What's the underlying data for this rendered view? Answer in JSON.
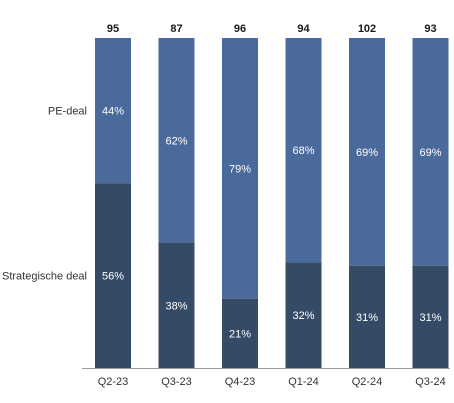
{
  "chart_data": {
    "type": "bar",
    "stacked": true,
    "normalized": true,
    "categories": [
      "Q2-23",
      "Q3-23",
      "Q4-23",
      "Q1-24",
      "Q2-24",
      "Q3-24"
    ],
    "totals": [
      95,
      87,
      96,
      94,
      102,
      93
    ],
    "series": [
      {
        "name": "Strategische deal",
        "values": [
          56,
          38,
          21,
          32,
          31,
          31
        ],
        "color": "#354a67"
      },
      {
        "name": "PE-deal",
        "values": [
          44,
          62,
          79,
          68,
          69,
          69
        ],
        "color": "#4a6a9b"
      }
    ],
    "value_suffix": "%",
    "ylim": [
      0,
      100
    ],
    "grid": false,
    "legend": "left, inline labels"
  }
}
